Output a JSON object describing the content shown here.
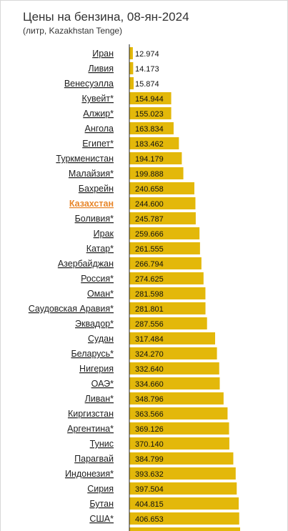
{
  "title": "Цены на бензина, 08-ян-2024",
  "subtitle": "(литр, Kazakhstan Tenge)",
  "colors": {
    "bar": "#e3b80a",
    "highlight_label": "#e8862a",
    "axis": "#222222"
  },
  "chart_data": {
    "type": "bar",
    "orientation": "horizontal",
    "title": "Цены на бензина, 08-ян-2024",
    "subtitle": "(литр, Kazakhstan Tenge)",
    "highlight": "Казахстан",
    "categories": [
      "Иран",
      "Ливия",
      "Венесуэлла",
      "Кувейт*",
      "Алжир*",
      "Ангола",
      "Египет*",
      "Туркменистан",
      "Малайзия*",
      "Бахрейн",
      "Казахстан",
      "Боливия*",
      "Ирак",
      "Катар*",
      "Азербайджан",
      "Россия*",
      "Оман*",
      "Саудовская Аравия*",
      "Эквадор*",
      "Судан",
      "Беларусь*",
      "Нигерия",
      "ОАЭ*",
      "Ливан*",
      "Киргизстан",
      "Аргентина*",
      "Тунис",
      "Парагвай",
      "Индонезия*",
      "Сирия",
      "Бутан",
      "США*"
    ],
    "values": [
      12.974,
      14.173,
      15.874,
      154.944,
      155.023,
      163.834,
      183.462,
      194.179,
      199.888,
      240.658,
      244.6,
      245.787,
      259.666,
      261.555,
      266.794,
      274.625,
      281.598,
      281.801,
      287.556,
      317.484,
      324.27,
      332.64,
      334.66,
      348.796,
      363.566,
      369.126,
      370.14,
      384.799,
      393.632,
      397.504,
      404.815,
      406.653
    ],
    "value_labels": [
      "12.974",
      "14.173",
      "15.874",
      "154.944",
      "155.023",
      "163.834",
      "183.462",
      "194.179",
      "199.888",
      "240.658",
      "244.600",
      "245.787",
      "259.666",
      "261.555",
      "266.794",
      "274.625",
      "281.598",
      "281.801",
      "287.556",
      "317.484",
      "324.270",
      "332.640",
      "334.660",
      "348.796",
      "363.566",
      "369.126",
      "370.140",
      "384.799",
      "393.632",
      "397.504",
      "404.815",
      "406.653"
    ],
    "xlim": [
      0,
      440
    ]
  }
}
